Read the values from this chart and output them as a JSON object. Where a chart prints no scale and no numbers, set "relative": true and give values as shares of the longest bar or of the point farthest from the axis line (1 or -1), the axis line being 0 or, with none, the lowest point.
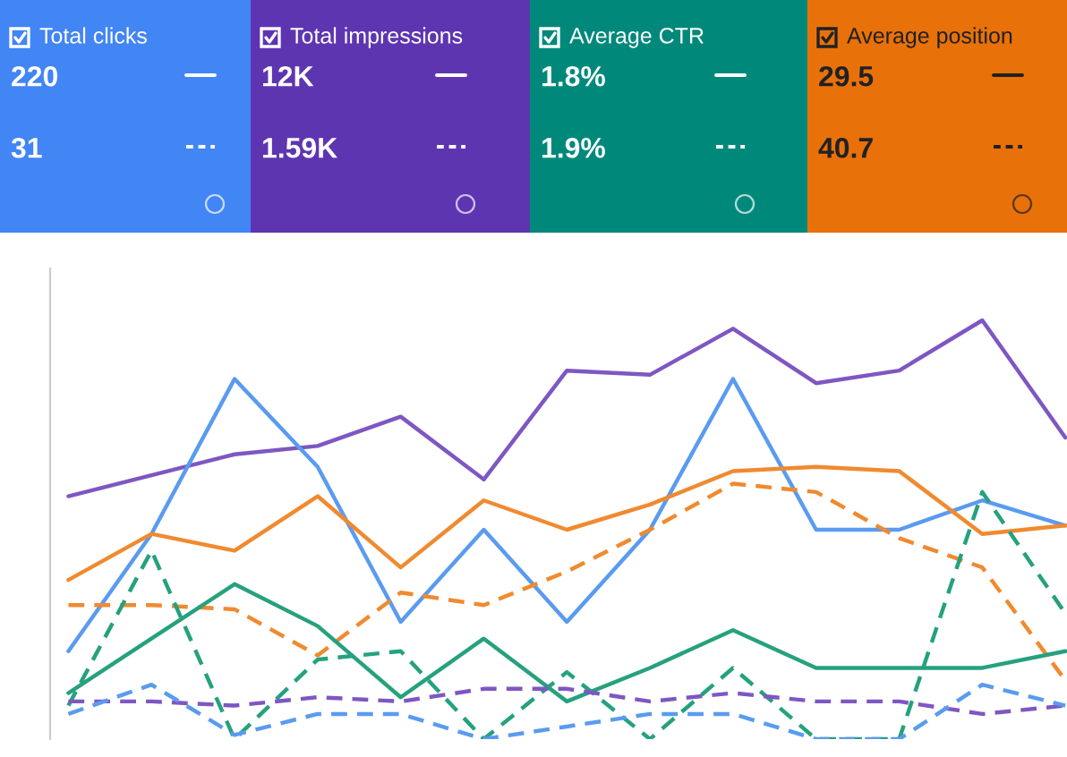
{
  "chart_data": [
    {
      "type": "other",
      "title": "Total clicks",
      "annotations": [
        "220",
        "31"
      ],
      "color": "#4285f4"
    },
    {
      "type": "other",
      "title": "Total impressions",
      "annotations": [
        "12K",
        "1.59K"
      ],
      "color": "#5e35b1"
    },
    {
      "type": "other",
      "title": "Average CTR",
      "annotations": [
        "1.8%",
        "1.9%"
      ],
      "color": "#00897b"
    },
    {
      "type": "other",
      "title": "Average position",
      "annotations": [
        "29.5",
        "40.7"
      ],
      "color": "#e8710a"
    },
    {
      "type": "line",
      "relative": true,
      "legend": false,
      "grid": false,
      "categories": [
        null,
        null,
        null,
        null,
        null,
        null,
        null,
        null,
        null,
        null,
        null,
        null,
        null
      ],
      "series": [
        {
          "color": "#7e57c2",
          "line_style": "solid",
          "values": [
            0.58,
            0.63,
            0.68,
            0.7,
            0.77,
            0.62,
            0.88,
            0.87,
            0.98,
            0.85,
            0.88,
            1.0,
            0.72
          ]
        },
        {
          "color": "#5a9bf0",
          "line_style": "solid",
          "values": [
            0.21,
            0.49,
            0.86,
            0.65,
            0.28,
            0.5,
            0.28,
            0.5,
            0.86,
            0.5,
            0.5,
            0.57,
            0.51
          ]
        },
        {
          "color": "#f08a30",
          "line_style": "solid",
          "values": [
            0.38,
            0.49,
            0.45,
            0.58,
            0.41,
            0.57,
            0.5,
            0.56,
            0.64,
            0.65,
            0.64,
            0.49,
            0.51
          ]
        },
        {
          "color": "#f08a30",
          "line_style": "dashed",
          "values": [
            0.32,
            0.32,
            0.31,
            0.2,
            0.35,
            0.32,
            0.4,
            0.5,
            0.61,
            0.59,
            0.48,
            0.41,
            0.14
          ]
        },
        {
          "color": "#26a17f",
          "line_style": "solid",
          "values": [
            0.11,
            0.24,
            0.37,
            0.27,
            0.1,
            0.24,
            0.09,
            0.17,
            0.26,
            0.17,
            0.17,
            0.17,
            0.21
          ]
        },
        {
          "color": "#26a17f",
          "line_style": "dashed",
          "values": [
            0.08,
            0.45,
            0.0,
            0.19,
            0.21,
            0.0,
            0.16,
            0.0,
            0.17,
            0.0,
            0.0,
            0.59,
            0.3
          ]
        },
        {
          "color": "#7e57c2",
          "line_style": "dashed",
          "values": [
            0.09,
            0.09,
            0.08,
            0.1,
            0.09,
            0.12,
            0.12,
            0.09,
            0.11,
            0.09,
            0.09,
            0.06,
            0.08
          ]
        },
        {
          "color": "#5a9bf0",
          "line_style": "dashed",
          "values": [
            0.06,
            0.13,
            0.01,
            0.06,
            0.06,
            0.0,
            0.03,
            0.06,
            0.06,
            0.0,
            0.0,
            0.13,
            0.08
          ]
        }
      ]
    }
  ]
}
